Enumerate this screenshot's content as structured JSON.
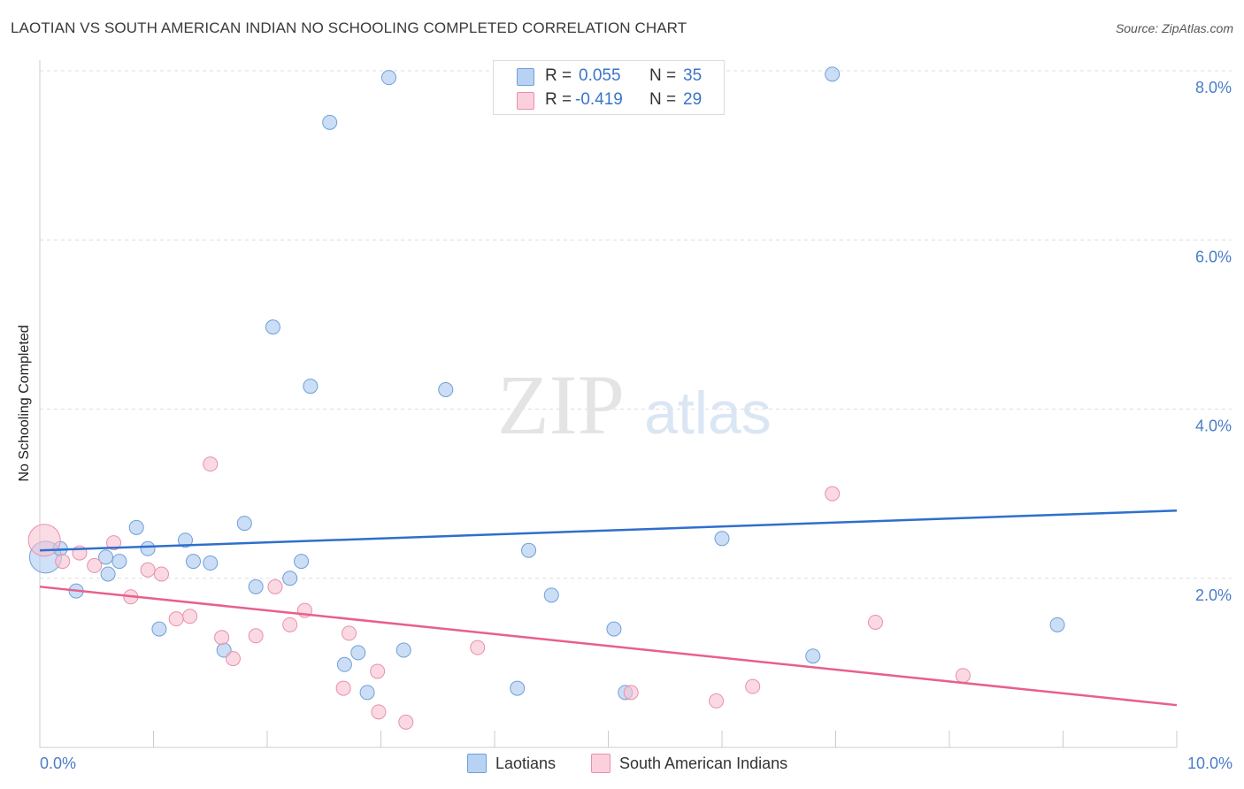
{
  "header": {
    "title": "LAOTIAN VS SOUTH AMERICAN INDIAN NO SCHOOLING COMPLETED CORRELATION CHART",
    "source": "Source: ZipAtlas.com"
  },
  "watermark": {
    "zip": "ZIP",
    "atlas": "atlas"
  },
  "legend_top": {
    "rows": [
      {
        "r_label": "R =",
        "r_value": "0.055",
        "n_label": "N =",
        "n_value": "35"
      },
      {
        "r_label": "R =",
        "r_value": "-0.419",
        "n_label": "N =",
        "n_value": "29"
      }
    ]
  },
  "legend_bottom": {
    "items": [
      "Laotians",
      "South American Indians"
    ]
  },
  "chart_data": {
    "type": "scatter",
    "title": "LAOTIAN VS SOUTH AMERICAN INDIAN NO SCHOOLING COMPLETED CORRELATION CHART",
    "xlabel": "",
    "ylabel": "No Schooling Completed",
    "xlim": [
      0,
      10
    ],
    "ylim": [
      0,
      8.0
    ],
    "x_tick_labels": [
      "0.0%",
      "10.0%"
    ],
    "y_ticks": [
      2,
      4,
      6,
      8
    ],
    "y_tick_labels": [
      "2.0%",
      "4.0%",
      "6.0%",
      "8.0%"
    ],
    "grid": true,
    "legend_position": "top-center",
    "series": [
      {
        "name": "Laotians",
        "color": "#a8c8f0",
        "edge": "#6f9fd8",
        "line_color": "#2f6fcc",
        "r": 0.055,
        "n": 35,
        "trend": {
          "x": [
            0,
            10
          ],
          "y": [
            2.33,
            2.8
          ]
        },
        "points": [
          {
            "x": 0.05,
            "y": 2.25,
            "big": true
          },
          {
            "x": 0.18,
            "y": 2.35
          },
          {
            "x": 0.32,
            "y": 1.85
          },
          {
            "x": 0.58,
            "y": 2.25
          },
          {
            "x": 0.6,
            "y": 2.05
          },
          {
            "x": 0.7,
            "y": 2.2
          },
          {
            "x": 0.85,
            "y": 2.6
          },
          {
            "x": 0.95,
            "y": 2.35
          },
          {
            "x": 1.05,
            "y": 1.4
          },
          {
            "x": 1.28,
            "y": 2.45
          },
          {
            "x": 1.35,
            "y": 2.2
          },
          {
            "x": 1.5,
            "y": 2.18
          },
          {
            "x": 1.62,
            "y": 1.15
          },
          {
            "x": 1.8,
            "y": 2.65
          },
          {
            "x": 1.9,
            "y": 1.9
          },
          {
            "x": 2.05,
            "y": 4.97
          },
          {
            "x": 2.2,
            "y": 2.0
          },
          {
            "x": 2.3,
            "y": 2.2
          },
          {
            "x": 2.38,
            "y": 4.27
          },
          {
            "x": 2.55,
            "y": 7.39
          },
          {
            "x": 2.68,
            "y": 0.98
          },
          {
            "x": 2.8,
            "y": 1.12
          },
          {
            "x": 2.88,
            "y": 0.65
          },
          {
            "x": 3.07,
            "y": 7.92
          },
          {
            "x": 3.2,
            "y": 1.15
          },
          {
            "x": 3.57,
            "y": 4.23
          },
          {
            "x": 4.2,
            "y": 0.7
          },
          {
            "x": 4.3,
            "y": 2.33
          },
          {
            "x": 4.5,
            "y": 1.8
          },
          {
            "x": 5.05,
            "y": 1.4
          },
          {
            "x": 5.15,
            "y": 0.65
          },
          {
            "x": 6.0,
            "y": 2.47
          },
          {
            "x": 6.8,
            "y": 1.08
          },
          {
            "x": 6.97,
            "y": 7.96
          },
          {
            "x": 8.95,
            "y": 1.45
          }
        ]
      },
      {
        "name": "South American Indians",
        "color": "#f8c0d0",
        "edge": "#e890aa",
        "line_color": "#e8608a",
        "r": -0.419,
        "n": 29,
        "trend": {
          "x": [
            0,
            10
          ],
          "y": [
            1.9,
            0.5
          ]
        },
        "points": [
          {
            "x": 0.04,
            "y": 2.45,
            "big": true
          },
          {
            "x": 0.2,
            "y": 2.2
          },
          {
            "x": 0.35,
            "y": 2.3
          },
          {
            "x": 0.48,
            "y": 2.15
          },
          {
            "x": 0.65,
            "y": 2.42
          },
          {
            "x": 0.8,
            "y": 1.78
          },
          {
            "x": 0.95,
            "y": 2.1
          },
          {
            "x": 1.07,
            "y": 2.05
          },
          {
            "x": 1.2,
            "y": 1.52
          },
          {
            "x": 1.32,
            "y": 1.55
          },
          {
            "x": 1.5,
            "y": 3.35
          },
          {
            "x": 1.6,
            "y": 1.3
          },
          {
            "x": 1.7,
            "y": 1.05
          },
          {
            "x": 1.9,
            "y": 1.32
          },
          {
            "x": 2.07,
            "y": 1.9
          },
          {
            "x": 2.2,
            "y": 1.45
          },
          {
            "x": 2.33,
            "y": 1.62
          },
          {
            "x": 2.67,
            "y": 0.7
          },
          {
            "x": 2.72,
            "y": 1.35
          },
          {
            "x": 2.97,
            "y": 0.9
          },
          {
            "x": 2.98,
            "y": 0.42
          },
          {
            "x": 3.22,
            "y": 0.3
          },
          {
            "x": 3.85,
            "y": 1.18
          },
          {
            "x": 5.2,
            "y": 0.65
          },
          {
            "x": 5.95,
            "y": 0.55
          },
          {
            "x": 6.27,
            "y": 0.72
          },
          {
            "x": 6.97,
            "y": 3.0
          },
          {
            "x": 7.35,
            "y": 1.48
          },
          {
            "x": 8.12,
            "y": 0.85
          }
        ]
      }
    ]
  }
}
